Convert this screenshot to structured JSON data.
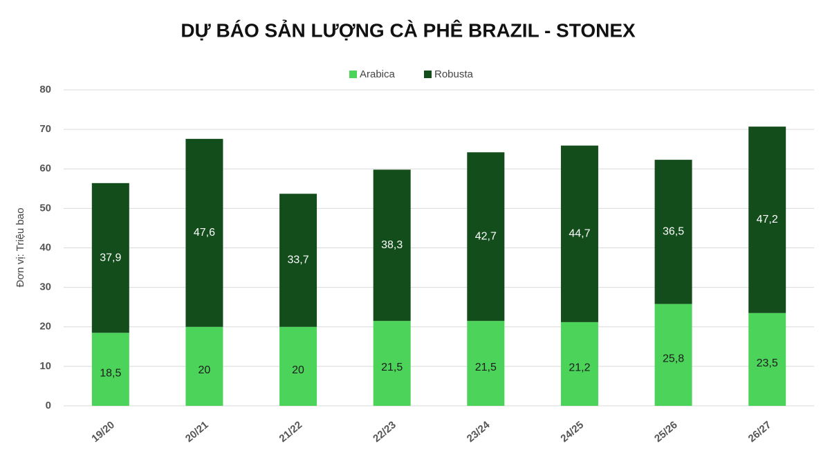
{
  "chart_data": {
    "type": "stacked_bar",
    "title": "DỰ BÁO SẢN LƯỢNG CÀ PHÊ BRAZIL - STONEX",
    "y_label": "Đơn vị: Triệu bao",
    "categories": [
      "19/20",
      "20/21",
      "21/22",
      "22/23",
      "23/24",
      "24/25",
      "25/26",
      "26/27"
    ],
    "series": [
      {
        "name": "Arabica",
        "color": "#4cd35a",
        "values": [
          18.5,
          20,
          20,
          21.5,
          21.5,
          21.2,
          25.8,
          23.5
        ],
        "value_labels": [
          "18,5",
          "20",
          "20",
          "21,5",
          "21,5",
          "21,2",
          "25,8",
          "23,5"
        ]
      },
      {
        "name": "Robusta",
        "color": "#134d1c",
        "values": [
          37.9,
          47.6,
          33.7,
          38.3,
          42.7,
          44.7,
          36.5,
          47.2
        ],
        "value_labels": [
          "37,9",
          "47,6",
          "33,7",
          "38,3",
          "42,7",
          "44,7",
          "36,5",
          "47,2"
        ]
      }
    ],
    "ylim": [
      0,
      80
    ],
    "yticks": [
      0,
      10,
      20,
      30,
      40,
      50,
      60,
      70,
      80
    ],
    "grid": true,
    "legend": "top"
  }
}
